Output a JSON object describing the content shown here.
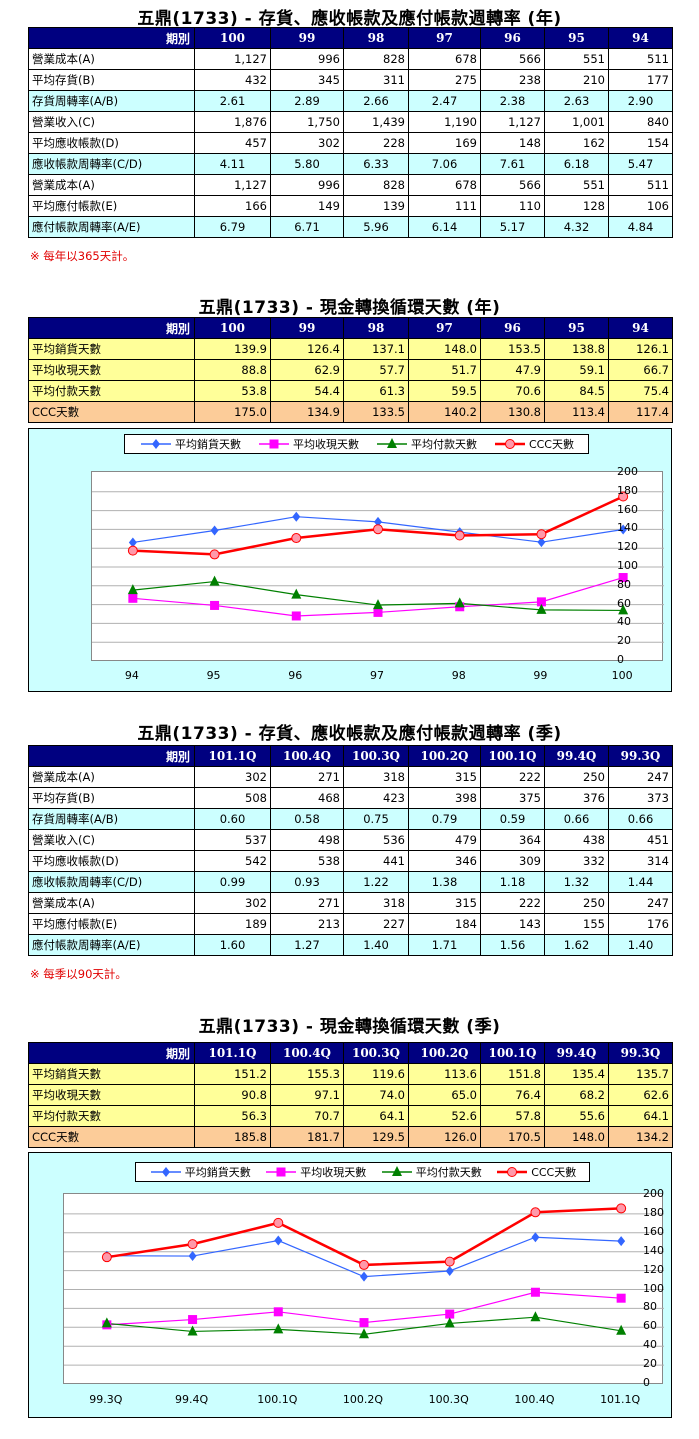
{
  "sections": {
    "turnover_year": {
      "title": "五鼎(1733) -  存貨、應收帳款及應付帳款週轉率 (年)",
      "header_label": "期別",
      "periods": [
        "100",
        "99",
        "98",
        "97",
        "96",
        "95",
        "94"
      ],
      "rows": [
        {
          "label": "營業成本(A)",
          "values": [
            "1,127",
            "996",
            "828",
            "678",
            "566",
            "551",
            "511"
          ],
          "style": "plain"
        },
        {
          "label": "平均存貨(B)",
          "values": [
            "432",
            "345",
            "311",
            "275",
            "238",
            "210",
            "177"
          ],
          "style": "plain"
        },
        {
          "label": "存貨周轉率(A/B)",
          "values": [
            "2.61",
            "2.89",
            "2.66",
            "2.47",
            "2.38",
            "2.63",
            "2.90"
          ],
          "style": "cyan"
        },
        {
          "label": "營業收入(C)",
          "values": [
            "1,876",
            "1,750",
            "1,439",
            "1,190",
            "1,127",
            "1,001",
            "840"
          ],
          "style": "plain"
        },
        {
          "label": "平均應收帳款(D)",
          "values": [
            "457",
            "302",
            "228",
            "169",
            "148",
            "162",
            "154"
          ],
          "style": "plain"
        },
        {
          "label": "應收帳款周轉率(C/D)",
          "values": [
            "4.11",
            "5.80",
            "6.33",
            "7.06",
            "7.61",
            "6.18",
            "5.47"
          ],
          "style": "cyan"
        },
        {
          "label": "營業成本(A)",
          "values": [
            "1,127",
            "996",
            "828",
            "678",
            "566",
            "551",
            "511"
          ],
          "style": "plain"
        },
        {
          "label": "平均應付帳款(E)",
          "values": [
            "166",
            "149",
            "139",
            "111",
            "110",
            "128",
            "106"
          ],
          "style": "plain"
        },
        {
          "label": "應付帳款周轉率(A/E)",
          "values": [
            "6.79",
            "6.71",
            "5.96",
            "6.14",
            "5.17",
            "4.32",
            "4.84"
          ],
          "style": "cyan"
        }
      ],
      "note": "※ 每年以365天計。"
    },
    "ccc_year": {
      "title": "五鼎(1733) -  現金轉換循環天數 (年)",
      "header_label": "期別",
      "periods": [
        "100",
        "99",
        "98",
        "97",
        "96",
        "95",
        "94"
      ],
      "rows": [
        {
          "label": "平均銷貨天數",
          "values": [
            "139.9",
            "126.4",
            "137.1",
            "148.0",
            "153.5",
            "138.8",
            "126.1"
          ],
          "style": "yellow"
        },
        {
          "label": "平均收現天數",
          "values": [
            "88.8",
            "62.9",
            "57.7",
            "51.7",
            "47.9",
            "59.1",
            "66.7"
          ],
          "style": "yellow"
        },
        {
          "label": "平均付款天數",
          "values": [
            "53.8",
            "54.4",
            "61.3",
            "59.5",
            "70.6",
            "84.5",
            "75.4"
          ],
          "style": "yellow"
        },
        {
          "label": "CCC天數",
          "values": [
            "175.0",
            "134.9",
            "133.5",
            "140.2",
            "130.8",
            "113.4",
            "117.4"
          ],
          "style": "orange"
        }
      ]
    },
    "turnover_quarter": {
      "title": "五鼎(1733) -  存貨、應收帳款及應付帳款週轉率 (季)",
      "header_label": "期別",
      "periods": [
        "101.1Q",
        "100.4Q",
        "100.3Q",
        "100.2Q",
        "100.1Q",
        "99.4Q",
        "99.3Q"
      ],
      "rows": [
        {
          "label": "營業成本(A)",
          "values": [
            "302",
            "271",
            "318",
            "315",
            "222",
            "250",
            "247"
          ],
          "style": "plain"
        },
        {
          "label": "平均存貨(B)",
          "values": [
            "508",
            "468",
            "423",
            "398",
            "375",
            "376",
            "373"
          ],
          "style": "plain"
        },
        {
          "label": "存貨周轉率(A/B)",
          "values": [
            "0.60",
            "0.58",
            "0.75",
            "0.79",
            "0.59",
            "0.66",
            "0.66"
          ],
          "style": "cyan"
        },
        {
          "label": "營業收入(C)",
          "values": [
            "537",
            "498",
            "536",
            "479",
            "364",
            "438",
            "451"
          ],
          "style": "plain"
        },
        {
          "label": "平均應收帳款(D)",
          "values": [
            "542",
            "538",
            "441",
            "346",
            "309",
            "332",
            "314"
          ],
          "style": "plain"
        },
        {
          "label": "應收帳款周轉率(C/D)",
          "values": [
            "0.99",
            "0.93",
            "1.22",
            "1.38",
            "1.18",
            "1.32",
            "1.44"
          ],
          "style": "cyan"
        },
        {
          "label": "營業成本(A)",
          "values": [
            "302",
            "271",
            "318",
            "315",
            "222",
            "250",
            "247"
          ],
          "style": "plain"
        },
        {
          "label": "平均應付帳款(E)",
          "values": [
            "189",
            "213",
            "227",
            "184",
            "143",
            "155",
            "176"
          ],
          "style": "plain"
        },
        {
          "label": "應付帳款周轉率(A/E)",
          "values": [
            "1.60",
            "1.27",
            "1.40",
            "1.71",
            "1.56",
            "1.62",
            "1.40"
          ],
          "style": "cyan"
        }
      ],
      "note": "※ 每季以90天計。"
    },
    "ccc_quarter": {
      "title": "五鼎(1733) -  現金轉換循環天數 (季)",
      "header_label": "期別",
      "periods": [
        "101.1Q",
        "100.4Q",
        "100.3Q",
        "100.2Q",
        "100.1Q",
        "99.4Q",
        "99.3Q"
      ],
      "rows": [
        {
          "label": "平均銷貨天數",
          "values": [
            "151.2",
            "155.3",
            "119.6",
            "113.6",
            "151.8",
            "135.4",
            "135.7"
          ],
          "style": "yellow"
        },
        {
          "label": "平均收現天數",
          "values": [
            "90.8",
            "97.1",
            "74.0",
            "65.0",
            "76.4",
            "68.2",
            "62.6"
          ],
          "style": "yellow"
        },
        {
          "label": "平均付款天數",
          "values": [
            "56.3",
            "70.7",
            "64.1",
            "52.6",
            "57.8",
            "55.6",
            "64.1"
          ],
          "style": "yellow"
        },
        {
          "label": "CCC天數",
          "values": [
            "185.8",
            "181.7",
            "129.5",
            "126.0",
            "170.5",
            "148.0",
            "134.2"
          ],
          "style": "orange"
        }
      ]
    }
  },
  "colors": {
    "header_bg": "#000080",
    "cyan_row": "#ccffff",
    "yellow_row": "#ffff99",
    "orange_row": "#fccc99",
    "note_red": "#e00000",
    "series_sales": "#3366ff",
    "series_collect": "#ff00ff",
    "series_pay": "#008000",
    "series_ccc": "#ff0000"
  },
  "chart_data": [
    {
      "type": "line",
      "title": "五鼎(1733) -  現金轉換循環天數 (年)",
      "categories": [
        "94",
        "95",
        "96",
        "97",
        "98",
        "99",
        "100"
      ],
      "series": [
        {
          "name": "平均銷貨天數",
          "marker": "diamond",
          "color": "#3366ff",
          "values": [
            126.1,
            138.8,
            153.5,
            148.0,
            137.1,
            126.4,
            139.9
          ]
        },
        {
          "name": "平均收現天數",
          "marker": "square",
          "color": "#ff00ff",
          "values": [
            66.7,
            59.1,
            47.9,
            51.7,
            57.7,
            62.9,
            88.8
          ]
        },
        {
          "name": "平均付款天數",
          "marker": "triangle",
          "color": "#008000",
          "values": [
            75.4,
            84.5,
            70.6,
            59.5,
            61.3,
            54.4,
            53.8
          ]
        },
        {
          "name": "CCC天數",
          "marker": "circle",
          "color": "#ff0000",
          "values": [
            117.4,
            113.4,
            130.8,
            140.2,
            133.5,
            134.9,
            175.0
          ]
        }
      ],
      "yticks": [
        "200",
        "180",
        "160",
        "140",
        "120",
        "100",
        "80",
        "60",
        "40",
        "20",
        "0"
      ],
      "ylim": [
        0,
        200
      ],
      "y_axis_side": "right",
      "grid": true,
      "legend_position": "top",
      "xlabel": "",
      "ylabel": ""
    },
    {
      "type": "line",
      "title": "五鼎(1733) -  現金轉換循環天數 (季)",
      "categories": [
        "99.3Q",
        "99.4Q",
        "100.1Q",
        "100.2Q",
        "100.3Q",
        "100.4Q",
        "101.1Q"
      ],
      "series": [
        {
          "name": "平均銷貨天數",
          "marker": "diamond",
          "color": "#3366ff",
          "values": [
            135.7,
            135.4,
            151.8,
            113.6,
            119.6,
            155.3,
            151.2
          ]
        },
        {
          "name": "平均收現天數",
          "marker": "square",
          "color": "#ff00ff",
          "values": [
            62.6,
            68.2,
            76.4,
            65.0,
            74.0,
            97.1,
            90.8
          ]
        },
        {
          "name": "平均付款天數",
          "marker": "triangle",
          "color": "#008000",
          "values": [
            64.1,
            55.6,
            57.8,
            52.6,
            64.1,
            70.7,
            56.3
          ]
        },
        {
          "name": "CCC天數",
          "marker": "circle",
          "color": "#ff0000",
          "values": [
            134.2,
            148.0,
            170.5,
            126.0,
            129.5,
            181.7,
            185.8
          ]
        }
      ],
      "yticks": [
        "200",
        "180",
        "160",
        "140",
        "120",
        "100",
        "80",
        "60",
        "40",
        "20",
        "0"
      ],
      "ylim": [
        0,
        200
      ],
      "y_axis_side": "right",
      "grid": true,
      "legend_position": "top",
      "xlabel": "",
      "ylabel": ""
    }
  ]
}
